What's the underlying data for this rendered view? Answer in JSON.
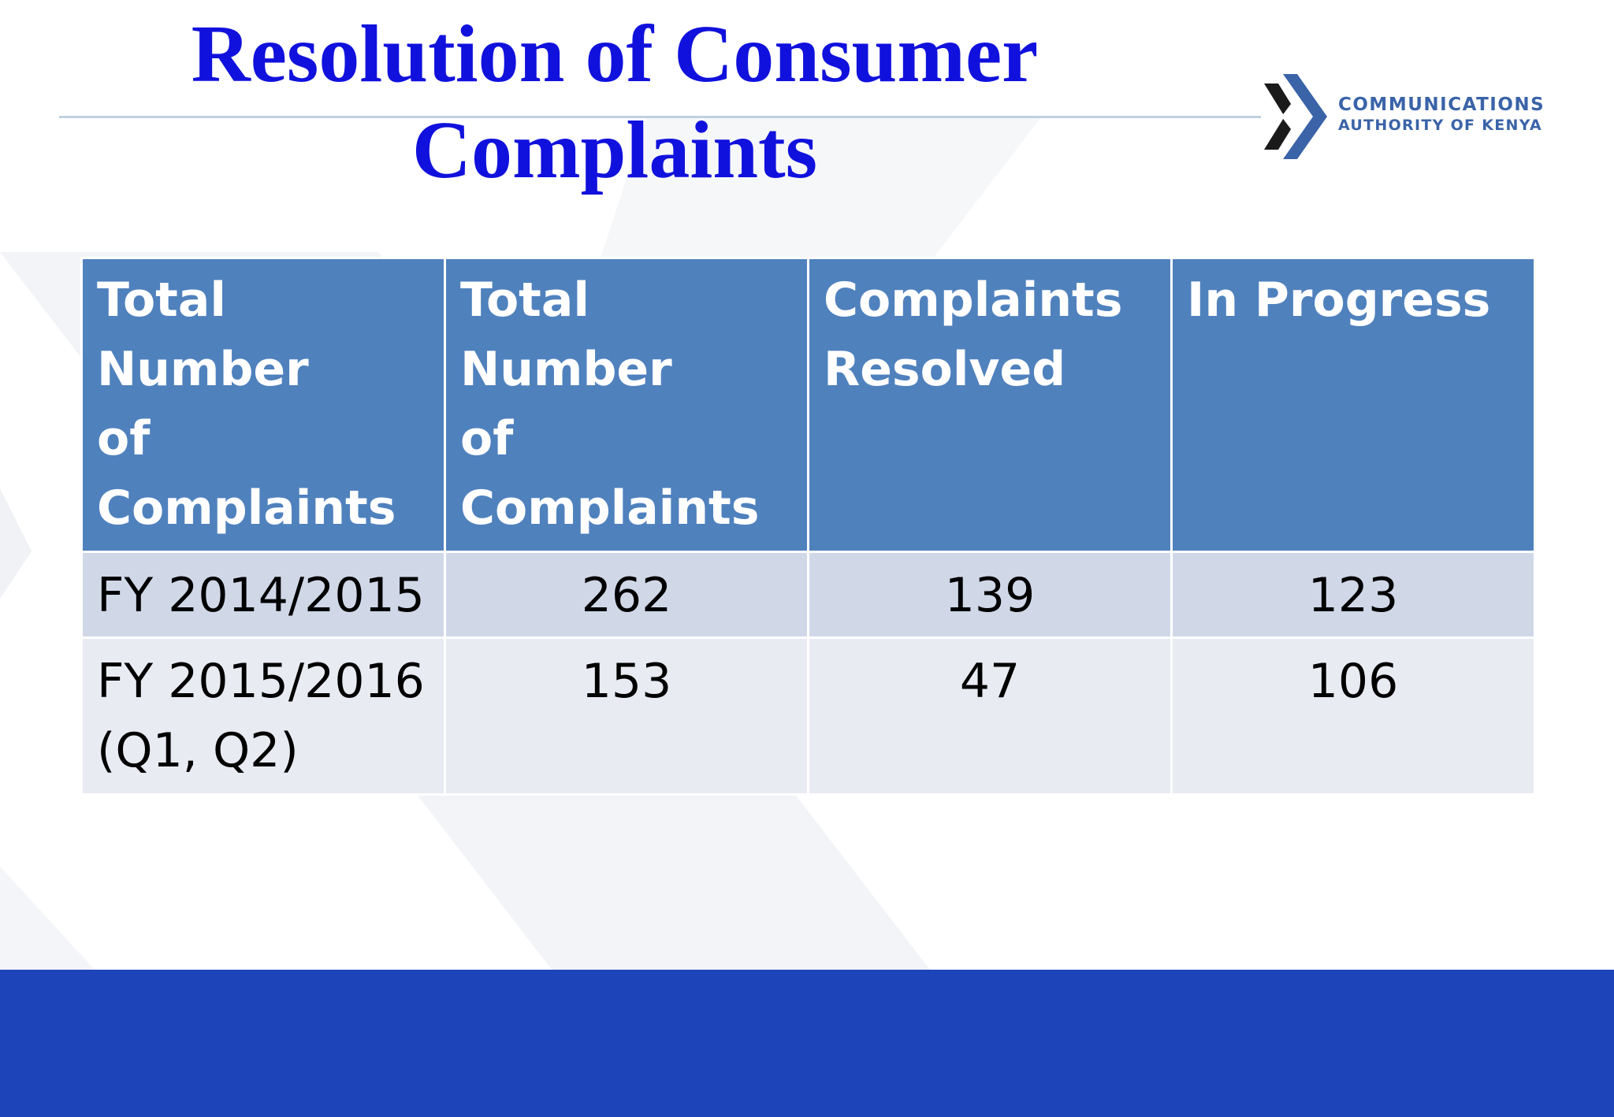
{
  "slide": {
    "title_line1": "Resolution of Consumer",
    "title_line2": "Complaints"
  },
  "logo": {
    "line1": "COMMUNICATIONS",
    "line2": "AUTHORITY OF KENYA",
    "colors": {
      "dark": "#1a1a1a",
      "blue": "#3a63a8"
    }
  },
  "table": {
    "headers": [
      [
        "Total Number",
        "of",
        "Complaints"
      ],
      [
        "Total Number",
        "of",
        "Complaints"
      ],
      [
        "Complaints",
        "Resolved"
      ],
      [
        "In Progress"
      ]
    ],
    "rows": [
      {
        "period": [
          "FY 2014/2015"
        ],
        "total": "262",
        "resolved": "139",
        "in_progress": "123"
      },
      {
        "period": [
          "FY 2015/2016",
          "(Q1, Q2)"
        ],
        "total": "153",
        "resolved": "47",
        "in_progress": "106"
      }
    ]
  },
  "colors": {
    "title": "#1111dd",
    "header_bg": "#4f81bd",
    "row_band_1": "#d0d8e8",
    "row_band_2": "#e9ebf2",
    "bottom_band": "#1d45b9"
  }
}
